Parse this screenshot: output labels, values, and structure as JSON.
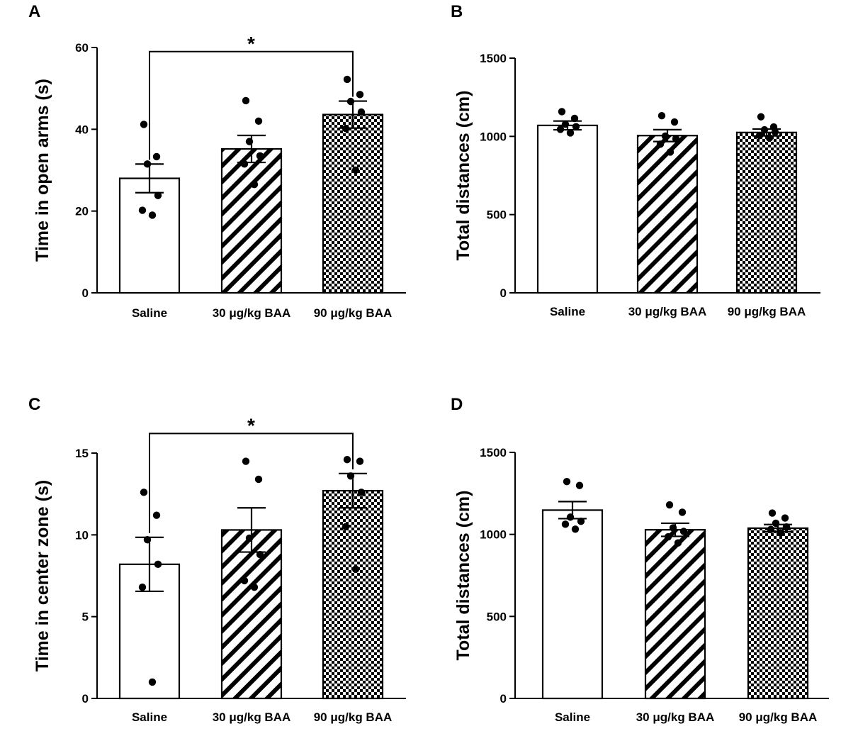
{
  "chart_data": [
    {
      "panel": "A",
      "type": "bar",
      "title": "",
      "xlabel": "",
      "ylabel": "Time in open arms (s)",
      "ylim": [
        0,
        60
      ],
      "yticks": [
        0,
        20,
        40,
        60
      ],
      "categories": [
        "Saline",
        "30 μg/kg BAA",
        "90 μg/kg BAA"
      ],
      "patterns": [
        "solid",
        "hatch",
        "checker"
      ],
      "values": [
        28,
        35.2,
        43.6
      ],
      "sem": [
        3.5,
        3.3,
        3.3
      ],
      "points": [
        [
          41.2,
          33.3,
          31.5,
          23.8,
          20.2,
          19.0
        ],
        [
          47.0,
          42.0,
          37.0,
          33.5,
          31.5,
          26.5
        ],
        [
          52.2,
          48.5,
          46.8,
          44.2,
          40.2,
          30.0
        ]
      ],
      "significance": {
        "from": 0,
        "to": 2,
        "label": "*",
        "level": 59
      }
    },
    {
      "panel": "B",
      "type": "bar",
      "title": "",
      "xlabel": "",
      "ylabel": "Total distances (cm)",
      "ylim": [
        0,
        1500
      ],
      "yticks": [
        0,
        500,
        1000,
        1500
      ],
      "categories": [
        "Saline",
        "30 μg/kg BAA",
        "90 μg/kg BAA"
      ],
      "patterns": [
        "solid",
        "hatch",
        "checker"
      ],
      "values": [
        1070,
        1005,
        1025
      ],
      "sem": [
        28,
        38,
        22
      ],
      "points": [
        [
          1158,
          1115,
          1078,
          1062,
          1045,
          1022
        ],
        [
          1132,
          1092,
          1002,
          985,
          950,
          900
        ],
        [
          1125,
          1060,
          1042,
          1028,
          1005,
          990
        ]
      ]
    },
    {
      "panel": "C",
      "type": "bar",
      "title": "",
      "xlabel": "",
      "ylabel": "Time in center zone (s)",
      "ylim": [
        0,
        15
      ],
      "yticks": [
        0,
        5,
        10,
        15
      ],
      "categories": [
        "Saline",
        "30 μg/kg BAA",
        "90 μg/kg BAA"
      ],
      "patterns": [
        "solid",
        "hatch",
        "checker"
      ],
      "values": [
        8.2,
        10.3,
        12.7
      ],
      "sem": [
        1.65,
        1.35,
        1.05
      ],
      "points": [
        [
          12.6,
          11.2,
          9.7,
          8.2,
          6.8,
          1.0
        ],
        [
          14.5,
          13.4,
          9.8,
          8.8,
          7.2,
          6.8
        ],
        [
          14.6,
          14.5,
          13.6,
          12.6,
          10.5,
          7.9
        ]
      ],
      "significance": {
        "from": 0,
        "to": 2,
        "label": "*",
        "level": 16.2
      }
    },
    {
      "panel": "D",
      "type": "bar",
      "title": "",
      "xlabel": "",
      "ylabel": "Total distances (cm)",
      "ylim": [
        0,
        1500
      ],
      "yticks": [
        0,
        500,
        1000,
        1500
      ],
      "categories": [
        "Saline",
        "30 μg/kg BAA",
        "90 μg/kg BAA"
      ],
      "patterns": [
        "solid",
        "hatch",
        "checker"
      ],
      "values": [
        1148,
        1028,
        1038
      ],
      "sem": [
        52,
        40,
        22
      ],
      "points": [
        [
          1322,
          1298,
          1105,
          1080,
          1062,
          1032
        ],
        [
          1180,
          1135,
          1040,
          1018,
          985,
          948
        ],
        [
          1130,
          1100,
          1068,
          1045,
          1030,
          1010
        ]
      ]
    }
  ]
}
